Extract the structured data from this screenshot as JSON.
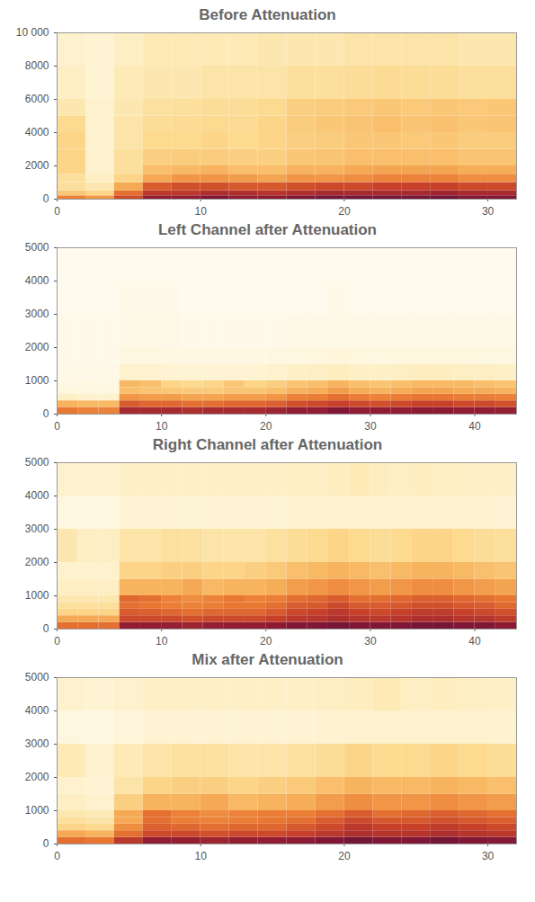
{
  "chart_data": [
    {
      "type": "heatmap",
      "title": "Before Attenuation",
      "xlim": [
        0,
        32
      ],
      "xticks": [
        0,
        10,
        20,
        30
      ],
      "ylim": [
        0,
        10000
      ],
      "yticks": [
        0,
        2000,
        4000,
        6000,
        8000,
        {
          "value": 10000,
          "label": "10 000"
        }
      ],
      "x_bins": [
        0,
        2,
        4,
        6,
        8,
        10,
        12,
        14,
        16,
        18,
        20,
        22,
        24,
        26,
        28,
        30,
        32
      ],
      "y_bins": [
        0,
        200,
        500,
        1000,
        1500,
        2000,
        3000,
        4000,
        5000,
        6000,
        8000,
        10000
      ],
      "zlim": [
        0,
        1
      ],
      "cells": [
        [
          0.55,
          0.35,
          0.25,
          0.25,
          0.3,
          0.3,
          0.3,
          0.28,
          0.2,
          0.15,
          0.12
        ],
        [
          0.5,
          0.3,
          0.2,
          0.15,
          0.12,
          0.12,
          0.12,
          0.12,
          0.12,
          0.1,
          0.1
        ],
        [
          0.7,
          0.6,
          0.45,
          0.3,
          0.25,
          0.25,
          0.22,
          0.22,
          0.2,
          0.18,
          0.15
        ],
        [
          0.85,
          0.75,
          0.65,
          0.45,
          0.38,
          0.32,
          0.28,
          0.26,
          0.24,
          0.2,
          0.18
        ],
        [
          0.85,
          0.75,
          0.68,
          0.5,
          0.4,
          0.33,
          0.28,
          0.27,
          0.25,
          0.2,
          0.18
        ],
        [
          0.88,
          0.78,
          0.68,
          0.5,
          0.42,
          0.33,
          0.3,
          0.28,
          0.26,
          0.22,
          0.18
        ],
        [
          0.85,
          0.78,
          0.66,
          0.48,
          0.38,
          0.32,
          0.28,
          0.27,
          0.26,
          0.22,
          0.18
        ],
        [
          0.86,
          0.76,
          0.66,
          0.46,
          0.38,
          0.32,
          0.3,
          0.3,
          0.28,
          0.22,
          0.2
        ],
        [
          0.88,
          0.78,
          0.68,
          0.5,
          0.42,
          0.35,
          0.32,
          0.33,
          0.32,
          0.25,
          0.2
        ],
        [
          0.9,
          0.8,
          0.7,
          0.5,
          0.42,
          0.36,
          0.33,
          0.35,
          0.33,
          0.25,
          0.2
        ],
        [
          0.9,
          0.8,
          0.7,
          0.52,
          0.45,
          0.38,
          0.35,
          0.36,
          0.34,
          0.26,
          0.22
        ],
        [
          0.9,
          0.8,
          0.72,
          0.55,
          0.46,
          0.38,
          0.35,
          0.38,
          0.35,
          0.27,
          0.22
        ],
        [
          0.9,
          0.8,
          0.72,
          0.55,
          0.46,
          0.38,
          0.34,
          0.36,
          0.34,
          0.26,
          0.22
        ],
        [
          0.9,
          0.82,
          0.72,
          0.55,
          0.46,
          0.38,
          0.35,
          0.37,
          0.35,
          0.26,
          0.22
        ],
        [
          0.88,
          0.8,
          0.7,
          0.52,
          0.44,
          0.36,
          0.33,
          0.35,
          0.34,
          0.25,
          0.2
        ],
        [
          0.88,
          0.8,
          0.7,
          0.52,
          0.44,
          0.36,
          0.33,
          0.36,
          0.35,
          0.25,
          0.2
        ]
      ]
    },
    {
      "type": "heatmap",
      "title": "Left Channel after Attenuation",
      "xlim": [
        0,
        44
      ],
      "xticks": [
        0,
        10,
        20,
        30,
        40
      ],
      "ylim": [
        0,
        5000
      ],
      "yticks": [
        0,
        1000,
        2000,
        3000,
        4000,
        5000
      ],
      "x_bins": [
        0,
        2,
        4,
        6,
        8,
        10,
        12,
        14,
        16,
        18,
        20,
        22,
        24,
        26,
        28,
        30,
        32,
        34,
        36,
        38,
        40,
        42,
        44
      ],
      "y_bins": [
        0,
        200,
        400,
        600,
        800,
        1000,
        1500,
        2000,
        3000,
        4000,
        5000
      ],
      "zlim": [
        0,
        1
      ],
      "cells": [
        [
          0.58,
          0.42,
          0.14,
          0.07,
          0.05,
          0.04,
          0.03,
          0.03,
          0.02,
          0.02
        ],
        [
          0.55,
          0.4,
          0.12,
          0.06,
          0.05,
          0.04,
          0.03,
          0.03,
          0.02,
          0.02
        ],
        [
          0.55,
          0.4,
          0.12,
          0.06,
          0.05,
          0.04,
          0.03,
          0.03,
          0.02,
          0.02
        ],
        [
          0.8,
          0.65,
          0.5,
          0.38,
          0.4,
          0.12,
          0.06,
          0.04,
          0.03,
          0.02
        ],
        [
          0.8,
          0.62,
          0.48,
          0.36,
          0.38,
          0.12,
          0.06,
          0.04,
          0.03,
          0.02
        ],
        [
          0.8,
          0.62,
          0.48,
          0.35,
          0.3,
          0.1,
          0.05,
          0.04,
          0.03,
          0.02
        ],
        [
          0.78,
          0.6,
          0.46,
          0.34,
          0.28,
          0.1,
          0.05,
          0.03,
          0.02,
          0.02
        ],
        [
          0.8,
          0.6,
          0.46,
          0.34,
          0.3,
          0.1,
          0.05,
          0.03,
          0.02,
          0.02
        ],
        [
          0.8,
          0.62,
          0.48,
          0.36,
          0.35,
          0.1,
          0.05,
          0.03,
          0.02,
          0.02
        ],
        [
          0.8,
          0.62,
          0.48,
          0.36,
          0.3,
          0.1,
          0.05,
          0.03,
          0.02,
          0.02
        ],
        [
          0.82,
          0.64,
          0.5,
          0.38,
          0.32,
          0.12,
          0.06,
          0.03,
          0.02,
          0.02
        ],
        [
          0.85,
          0.68,
          0.55,
          0.42,
          0.36,
          0.14,
          0.06,
          0.04,
          0.02,
          0.02
        ],
        [
          0.85,
          0.7,
          0.56,
          0.44,
          0.38,
          0.15,
          0.07,
          0.04,
          0.02,
          0.02
        ],
        [
          0.88,
          0.72,
          0.6,
          0.48,
          0.42,
          0.16,
          0.08,
          0.04,
          0.03,
          0.02
        ],
        [
          0.85,
          0.7,
          0.56,
          0.44,
          0.38,
          0.14,
          0.07,
          0.04,
          0.02,
          0.02
        ],
        [
          0.85,
          0.68,
          0.55,
          0.42,
          0.36,
          0.14,
          0.06,
          0.04,
          0.02,
          0.02
        ],
        [
          0.85,
          0.7,
          0.56,
          0.44,
          0.38,
          0.15,
          0.07,
          0.04,
          0.02,
          0.02
        ],
        [
          0.86,
          0.72,
          0.58,
          0.46,
          0.4,
          0.16,
          0.07,
          0.04,
          0.02,
          0.02
        ],
        [
          0.86,
          0.72,
          0.58,
          0.46,
          0.4,
          0.16,
          0.07,
          0.04,
          0.02,
          0.02
        ],
        [
          0.85,
          0.7,
          0.56,
          0.44,
          0.4,
          0.15,
          0.07,
          0.04,
          0.02,
          0.02
        ],
        [
          0.85,
          0.7,
          0.56,
          0.44,
          0.38,
          0.15,
          0.06,
          0.04,
          0.02,
          0.02
        ],
        [
          0.84,
          0.68,
          0.55,
          0.42,
          0.36,
          0.14,
          0.06,
          0.04,
          0.02,
          0.02
        ]
      ]
    },
    {
      "type": "heatmap",
      "title": "Right Channel after Attenuation",
      "xlim": [
        0,
        44
      ],
      "xticks": [
        0,
        10,
        20,
        30,
        40
      ],
      "ylim": [
        0,
        5000
      ],
      "yticks": [
        0,
        1000,
        2000,
        3000,
        4000,
        5000
      ],
      "x_bins": [
        0,
        2,
        4,
        6,
        8,
        10,
        12,
        14,
        16,
        18,
        20,
        22,
        24,
        26,
        28,
        30,
        32,
        34,
        36,
        38,
        40,
        42,
        44
      ],
      "y_bins": [
        0,
        200,
        400,
        600,
        800,
        1000,
        1500,
        2000,
        3000,
        4000,
        5000
      ],
      "zlim": [
        0,
        1
      ],
      "cells": [
        [
          0.6,
          0.45,
          0.3,
          0.25,
          0.2,
          0.15,
          0.12,
          0.2,
          0.06,
          0.12
        ],
        [
          0.6,
          0.45,
          0.3,
          0.25,
          0.2,
          0.15,
          0.12,
          0.15,
          0.06,
          0.12
        ],
        [
          0.6,
          0.45,
          0.3,
          0.25,
          0.2,
          0.15,
          0.12,
          0.15,
          0.06,
          0.12
        ],
        [
          0.85,
          0.7,
          0.65,
          0.6,
          0.62,
          0.42,
          0.3,
          0.22,
          0.1,
          0.14
        ],
        [
          0.85,
          0.7,
          0.64,
          0.58,
          0.6,
          0.42,
          0.3,
          0.22,
          0.1,
          0.14
        ],
        [
          0.84,
          0.7,
          0.62,
          0.56,
          0.55,
          0.42,
          0.32,
          0.24,
          0.1,
          0.14
        ],
        [
          0.82,
          0.68,
          0.6,
          0.55,
          0.52,
          0.45,
          0.32,
          0.24,
          0.1,
          0.14
        ],
        [
          0.84,
          0.7,
          0.62,
          0.56,
          0.55,
          0.4,
          0.3,
          0.22,
          0.1,
          0.14
        ],
        [
          0.85,
          0.7,
          0.62,
          0.58,
          0.58,
          0.42,
          0.3,
          0.22,
          0.1,
          0.14
        ],
        [
          0.85,
          0.7,
          0.62,
          0.58,
          0.55,
          0.42,
          0.32,
          0.22,
          0.1,
          0.14
        ],
        [
          0.86,
          0.72,
          0.65,
          0.6,
          0.56,
          0.44,
          0.34,
          0.24,
          0.1,
          0.14
        ],
        [
          0.88,
          0.75,
          0.7,
          0.65,
          0.6,
          0.48,
          0.38,
          0.26,
          0.11,
          0.15
        ],
        [
          0.88,
          0.76,
          0.72,
          0.66,
          0.62,
          0.5,
          0.4,
          0.28,
          0.11,
          0.15
        ],
        [
          0.9,
          0.78,
          0.75,
          0.7,
          0.65,
          0.52,
          0.42,
          0.3,
          0.12,
          0.16
        ],
        [
          0.88,
          0.76,
          0.72,
          0.66,
          0.6,
          0.5,
          0.4,
          0.28,
          0.12,
          0.18
        ],
        [
          0.88,
          0.75,
          0.7,
          0.65,
          0.6,
          0.48,
          0.38,
          0.26,
          0.11,
          0.16
        ],
        [
          0.88,
          0.76,
          0.72,
          0.66,
          0.62,
          0.5,
          0.4,
          0.28,
          0.12,
          0.15
        ],
        [
          0.9,
          0.78,
          0.74,
          0.68,
          0.64,
          0.52,
          0.42,
          0.3,
          0.12,
          0.16
        ],
        [
          0.9,
          0.78,
          0.74,
          0.68,
          0.64,
          0.52,
          0.42,
          0.3,
          0.12,
          0.15
        ],
        [
          0.88,
          0.76,
          0.72,
          0.66,
          0.62,
          0.5,
          0.4,
          0.28,
          0.12,
          0.15
        ],
        [
          0.88,
          0.76,
          0.7,
          0.65,
          0.6,
          0.48,
          0.38,
          0.26,
          0.11,
          0.14
        ],
        [
          0.86,
          0.74,
          0.68,
          0.62,
          0.58,
          0.46,
          0.36,
          0.25,
          0.1,
          0.14
        ]
      ]
    },
    {
      "type": "heatmap",
      "title": "Mix after Attenuation",
      "xlim": [
        0,
        32
      ],
      "xticks": [
        0,
        10,
        20,
        30
      ],
      "ylim": [
        0,
        5000
      ],
      "yticks": [
        0,
        1000,
        2000,
        3000,
        4000,
        5000
      ],
      "x_bins": [
        0,
        2,
        4,
        6,
        8,
        10,
        12,
        14,
        16,
        18,
        20,
        22,
        24,
        26,
        28,
        30,
        32
      ],
      "y_bins": [
        0,
        200,
        400,
        600,
        800,
        1000,
        1500,
        2000,
        3000,
        4000,
        5000
      ],
      "zlim": [
        0,
        1
      ],
      "cells": [
        [
          0.6,
          0.45,
          0.3,
          0.25,
          0.2,
          0.15,
          0.12,
          0.18,
          0.06,
          0.12
        ],
        [
          0.58,
          0.42,
          0.28,
          0.22,
          0.18,
          0.12,
          0.1,
          0.12,
          0.05,
          0.1
        ],
        [
          0.75,
          0.6,
          0.52,
          0.45,
          0.45,
          0.32,
          0.22,
          0.18,
          0.08,
          0.12
        ],
        [
          0.85,
          0.7,
          0.64,
          0.6,
          0.6,
          0.42,
          0.3,
          0.22,
          0.1,
          0.14
        ],
        [
          0.84,
          0.7,
          0.62,
          0.56,
          0.55,
          0.42,
          0.32,
          0.24,
          0.1,
          0.14
        ],
        [
          0.82,
          0.68,
          0.6,
          0.55,
          0.52,
          0.45,
          0.32,
          0.24,
          0.1,
          0.14
        ],
        [
          0.84,
          0.7,
          0.62,
          0.56,
          0.55,
          0.4,
          0.3,
          0.22,
          0.1,
          0.14
        ],
        [
          0.85,
          0.7,
          0.62,
          0.58,
          0.56,
          0.42,
          0.32,
          0.22,
          0.1,
          0.14
        ],
        [
          0.86,
          0.72,
          0.66,
          0.6,
          0.56,
          0.44,
          0.34,
          0.24,
          0.1,
          0.14
        ],
        [
          0.88,
          0.75,
          0.7,
          0.65,
          0.6,
          0.48,
          0.38,
          0.26,
          0.11,
          0.15
        ],
        [
          0.9,
          0.78,
          0.75,
          0.7,
          0.65,
          0.52,
          0.42,
          0.3,
          0.12,
          0.16
        ],
        [
          0.88,
          0.76,
          0.72,
          0.66,
          0.6,
          0.5,
          0.4,
          0.28,
          0.12,
          0.18
        ],
        [
          0.88,
          0.76,
          0.72,
          0.66,
          0.62,
          0.5,
          0.4,
          0.28,
          0.12,
          0.15
        ],
        [
          0.9,
          0.78,
          0.74,
          0.68,
          0.64,
          0.52,
          0.42,
          0.3,
          0.12,
          0.16
        ],
        [
          0.88,
          0.76,
          0.72,
          0.66,
          0.62,
          0.5,
          0.4,
          0.28,
          0.12,
          0.15
        ],
        [
          0.87,
          0.75,
          0.7,
          0.64,
          0.6,
          0.48,
          0.38,
          0.26,
          0.11,
          0.14
        ]
      ]
    }
  ]
}
